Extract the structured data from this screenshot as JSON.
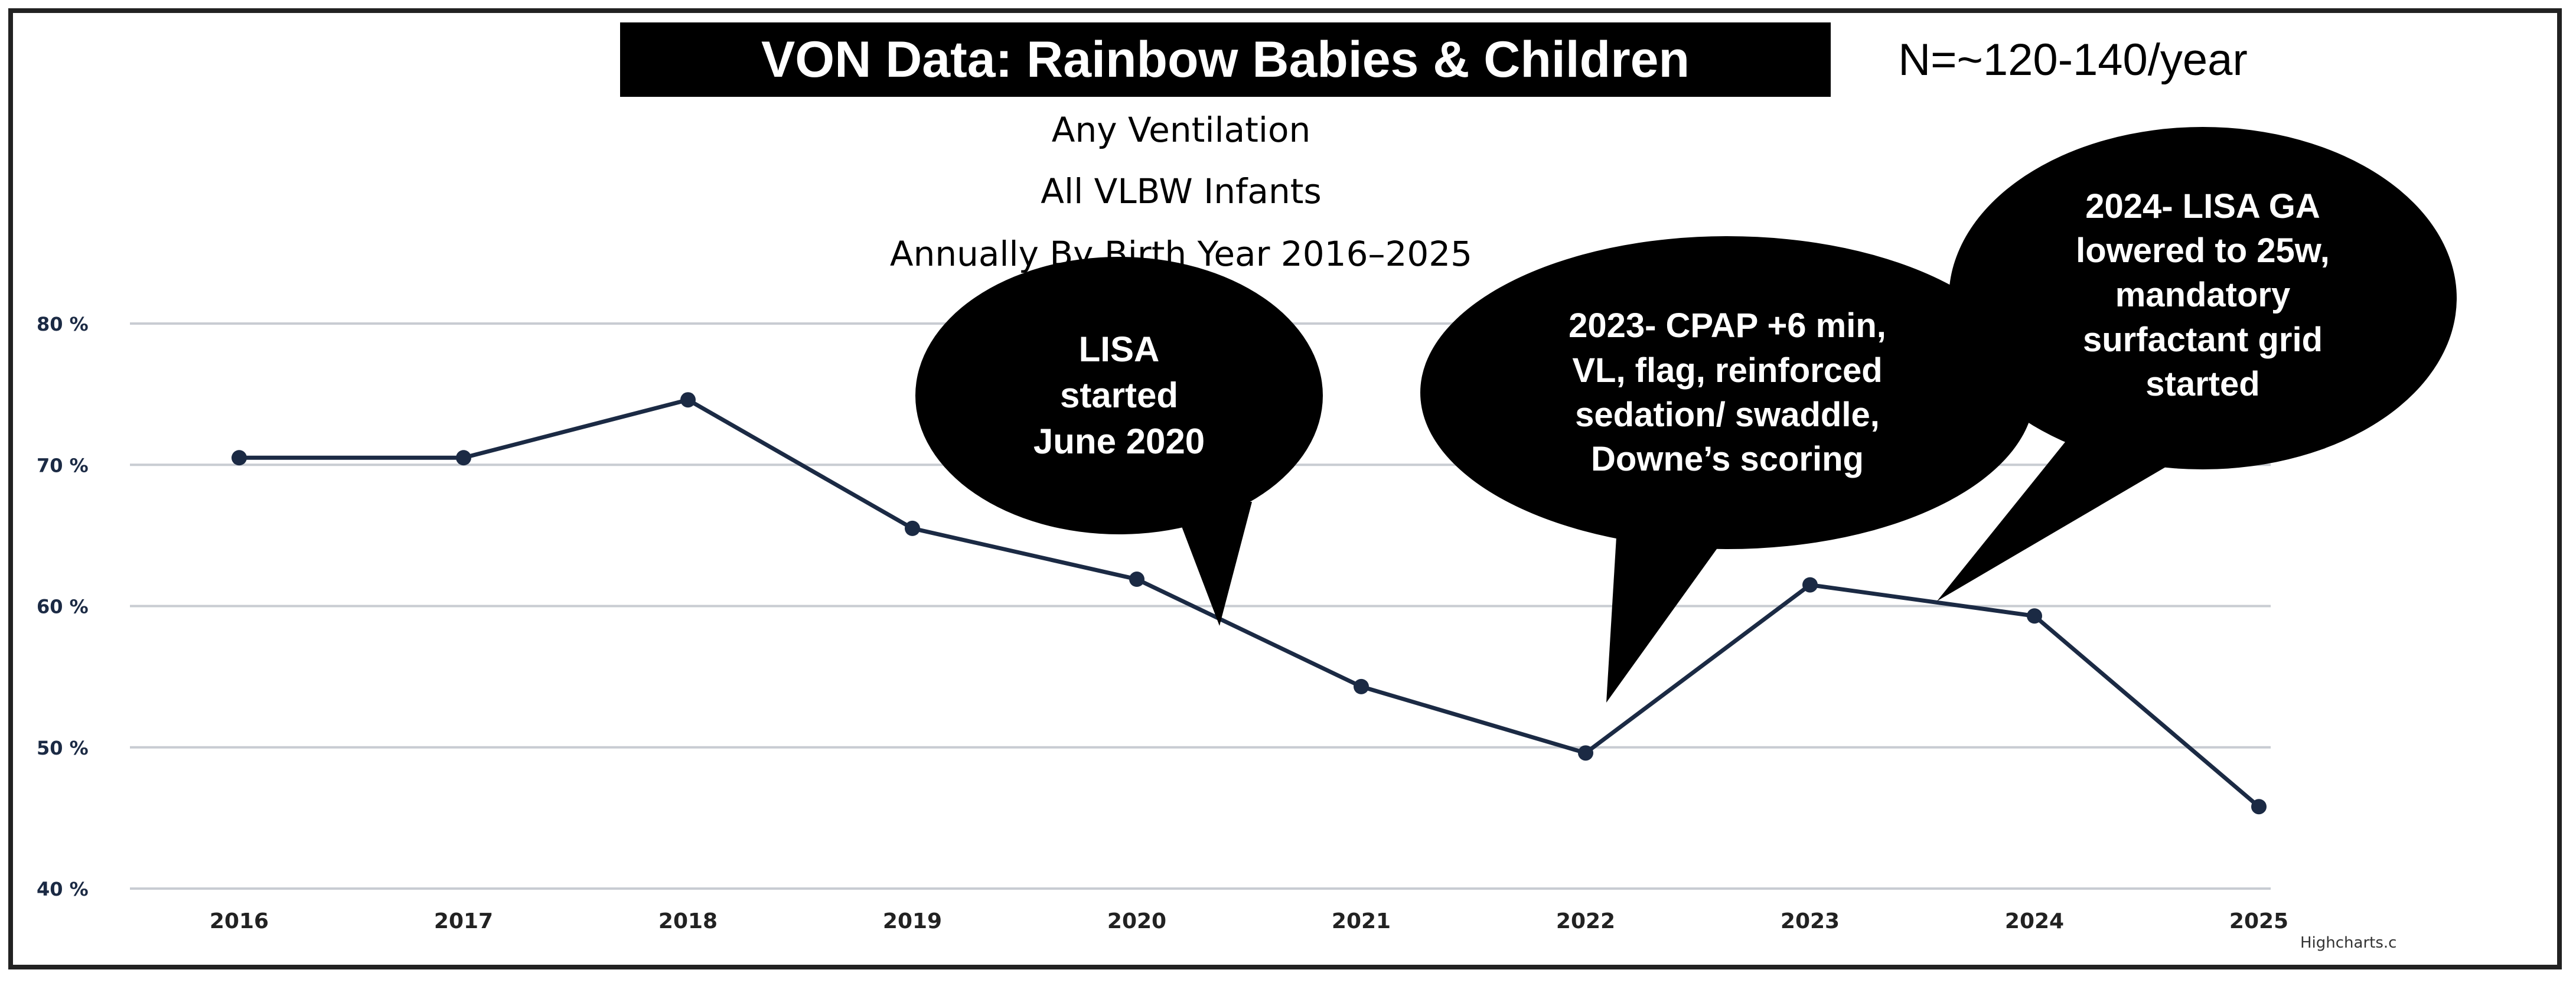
{
  "header": {
    "title": "VON Data: Rainbow Babies & Children",
    "n_label": "N=~120-140/year",
    "subtitle_lines": [
      "Any Ventilation",
      "All VLBW Infants",
      "Annually By Birth Year 2016–2025"
    ]
  },
  "chart_data": {
    "type": "line",
    "categories": [
      "2016",
      "2017",
      "2018",
      "2019",
      "2020",
      "2021",
      "2022",
      "2023",
      "2024",
      "2025"
    ],
    "series": [
      {
        "values": [
          70.5,
          70.5,
          74.6,
          65.5,
          61.9,
          54.3,
          49.6,
          61.5,
          59.3,
          45.8
        ]
      }
    ],
    "ylim": [
      40,
      80
    ],
    "yticks": [
      40,
      50,
      60,
      70,
      80
    ],
    "ytick_labels": [
      "40 %",
      "50 %",
      "60 %",
      "70 %",
      "80 %"
    ],
    "xlabel": "",
    "ylabel": "",
    "grid": true,
    "line_color": "#1b2a44",
    "grid_color": "#c8ccd2"
  },
  "callouts": [
    {
      "id": "lisa",
      "text": "LISA\nstarted\nJune 2020"
    },
    {
      "id": "cpap",
      "text": "2023- CPAP +6  min,\nVL, flag, reinforced\nsedation/ swaddle,\nDowne’s scoring"
    },
    {
      "id": "ga",
      "text": "2024- LISA GA\nlowered to 25w,\nmandatory\nsurfactant grid\nstarted"
    }
  ],
  "credit": "Highcharts.c"
}
